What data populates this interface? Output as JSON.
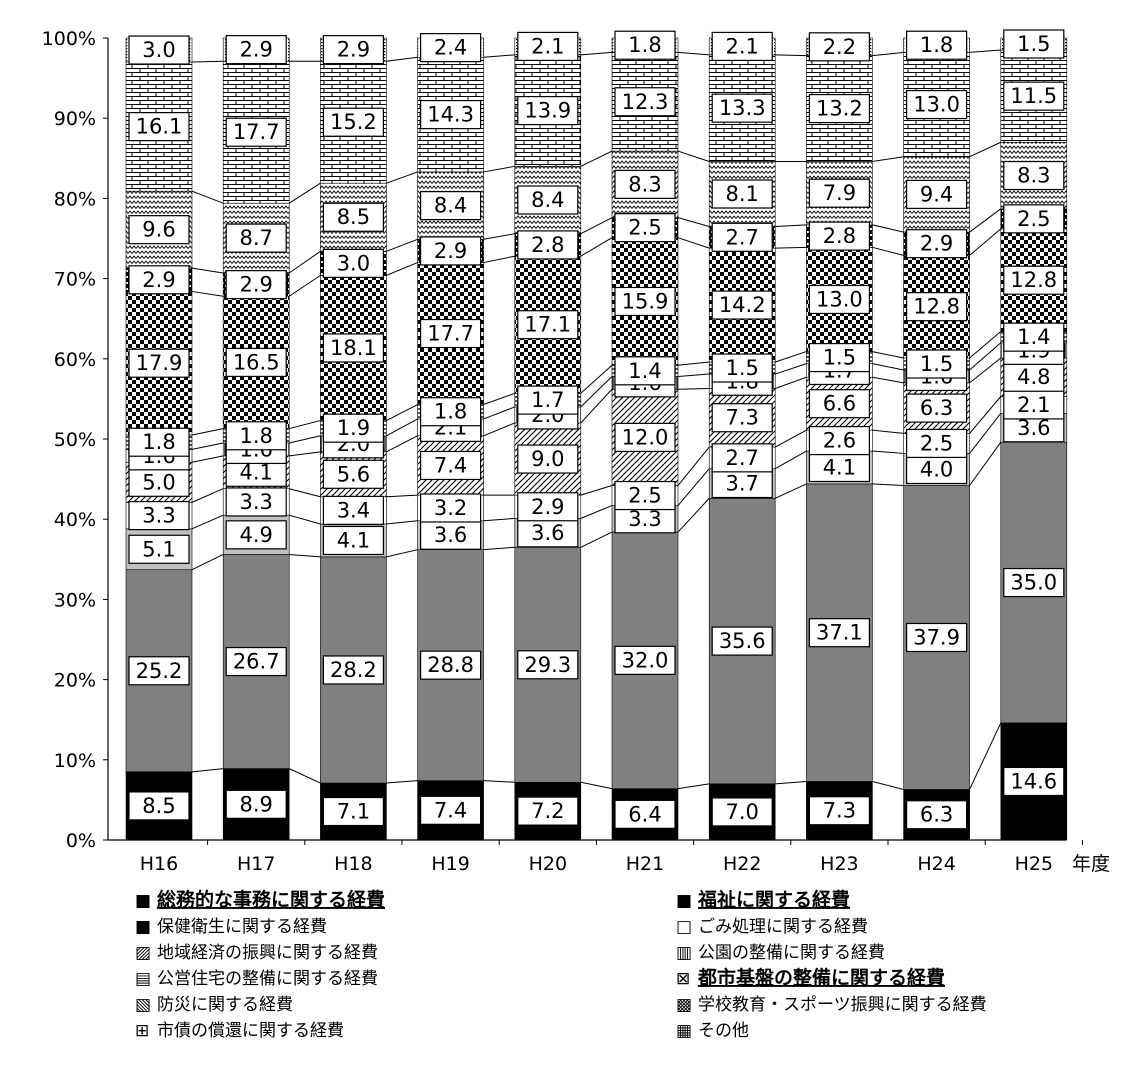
{
  "chart_data": {
    "type": "bar",
    "stacked": true,
    "percent_stacked": true,
    "title": "",
    "xlabel": "年度",
    "ylabel": "",
    "ylim": [
      0,
      100
    ],
    "y_ticks": [
      "0%",
      "10%",
      "20%",
      "30%",
      "40%",
      "50%",
      "60%",
      "70%",
      "80%",
      "90%",
      "100%"
    ],
    "categories": [
      "H16",
      "H17",
      "H18",
      "H19",
      "H20",
      "H21",
      "H22",
      "H23",
      "H24",
      "H25"
    ],
    "grid": false,
    "legend_position": "bottom",
    "series": [
      {
        "name": "総務的な事務に関する経費",
        "pattern": "solid-black",
        "color": "#000000",
        "values": [
          8.5,
          8.9,
          7.1,
          7.4,
          7.2,
          6.4,
          7.0,
          7.3,
          6.3,
          14.6
        ]
      },
      {
        "name": "福祉に関する経費",
        "pattern": "solid-gray",
        "color": "#808080",
        "values": [
          25.2,
          26.7,
          28.2,
          28.8,
          29.3,
          32.0,
          35.6,
          37.1,
          37.9,
          35.0
        ]
      },
      {
        "name": "保健衛生に関する経費",
        "pattern": "light-gray",
        "color": "#c0c0c0",
        "values": [
          5.1,
          4.9,
          4.1,
          3.6,
          3.6,
          3.3,
          3.7,
          4.1,
          4.0,
          3.6
        ]
      },
      {
        "name": "ごみ処理に関する経費",
        "pattern": "white",
        "color": "#ffffff",
        "values": [
          3.3,
          3.3,
          3.4,
          3.2,
          2.9,
          2.5,
          2.7,
          2.6,
          2.5,
          2.1
        ]
      },
      {
        "name": "地域経済の振興に関する経費",
        "pattern": "diagonal",
        "color": "#ffffff",
        "values": [
          5.0,
          4.1,
          5.6,
          7.4,
          9.0,
          12.0,
          7.3,
          6.6,
          6.3,
          4.8
        ]
      },
      {
        "name": "公園の整備に関する経費",
        "pattern": "vertical",
        "color": "#ffffff",
        "values": [
          1.6,
          1.6,
          2.0,
          2.1,
          2.0,
          1.6,
          1.8,
          1.7,
          1.6,
          1.9
        ]
      },
      {
        "name": "公営住宅の整備に関する経費",
        "pattern": "horizontal",
        "color": "#ffffff",
        "values": [
          1.8,
          1.8,
          1.9,
          1.8,
          1.7,
          1.4,
          1.5,
          1.5,
          1.5,
          1.4
        ]
      },
      {
        "name": "都市基盤の整備に関する経費",
        "pattern": "checker",
        "color": "#000000",
        "values": [
          17.9,
          16.5,
          18.1,
          17.7,
          17.1,
          15.9,
          14.2,
          13.0,
          12.8,
          12.8
        ]
      },
      {
        "name": "防災に関する経費",
        "pattern": "dense-checker",
        "color": "#000000",
        "values": [
          2.9,
          2.9,
          3.0,
          2.9,
          2.8,
          2.5,
          2.7,
          2.8,
          2.9,
          2.5
        ]
      },
      {
        "name": "学校教育・スポーツ振興に関する経費",
        "pattern": "zigzag",
        "color": "#ffffff",
        "values": [
          9.6,
          8.7,
          8.5,
          8.4,
          8.4,
          8.3,
          8.1,
          7.9,
          9.4,
          8.3
        ]
      },
      {
        "name": "市債の償還に関する経費",
        "pattern": "brick",
        "color": "#ffffff",
        "values": [
          16.1,
          17.7,
          15.2,
          14.3,
          13.9,
          12.3,
          13.3,
          13.2,
          13.0,
          11.5
        ]
      },
      {
        "name": "その他",
        "pattern": "dots",
        "color": "#ffffff",
        "values": [
          3.0,
          2.9,
          2.9,
          2.4,
          2.1,
          1.8,
          2.1,
          2.2,
          1.8,
          1.5
        ]
      }
    ]
  },
  "legend": {
    "items": [
      {
        "glyph": "■",
        "text": "総務的な事務に関する経費",
        "bold": true
      },
      {
        "glyph": "■",
        "text": "福祉に関する経費",
        "bold": true
      },
      {
        "glyph": "■",
        "text": "保健衛生に関する経費",
        "bold": false
      },
      {
        "glyph": "□",
        "text": "ごみ処理に関する経費",
        "bold": false
      },
      {
        "glyph": "▨",
        "text": "地域経済の振興に関する経費",
        "bold": false
      },
      {
        "glyph": "▥",
        "text": "公園の整備に関する経費",
        "bold": false
      },
      {
        "glyph": "▤",
        "text": "公営住宅の整備に関する経費",
        "bold": false
      },
      {
        "glyph": "⊠",
        "text": "都市基盤の整備に関する経費",
        "bold": true
      },
      {
        "glyph": "▧",
        "text": "防災に関する経費",
        "bold": false
      },
      {
        "glyph": "▩",
        "text": "学校教育・スポーツ振興に関する経費",
        "bold": false
      },
      {
        "glyph": "⊞",
        "text": "市債の償還に関する経費",
        "bold": false
      },
      {
        "glyph": "▦",
        "text": "その他",
        "bold": false
      }
    ]
  }
}
